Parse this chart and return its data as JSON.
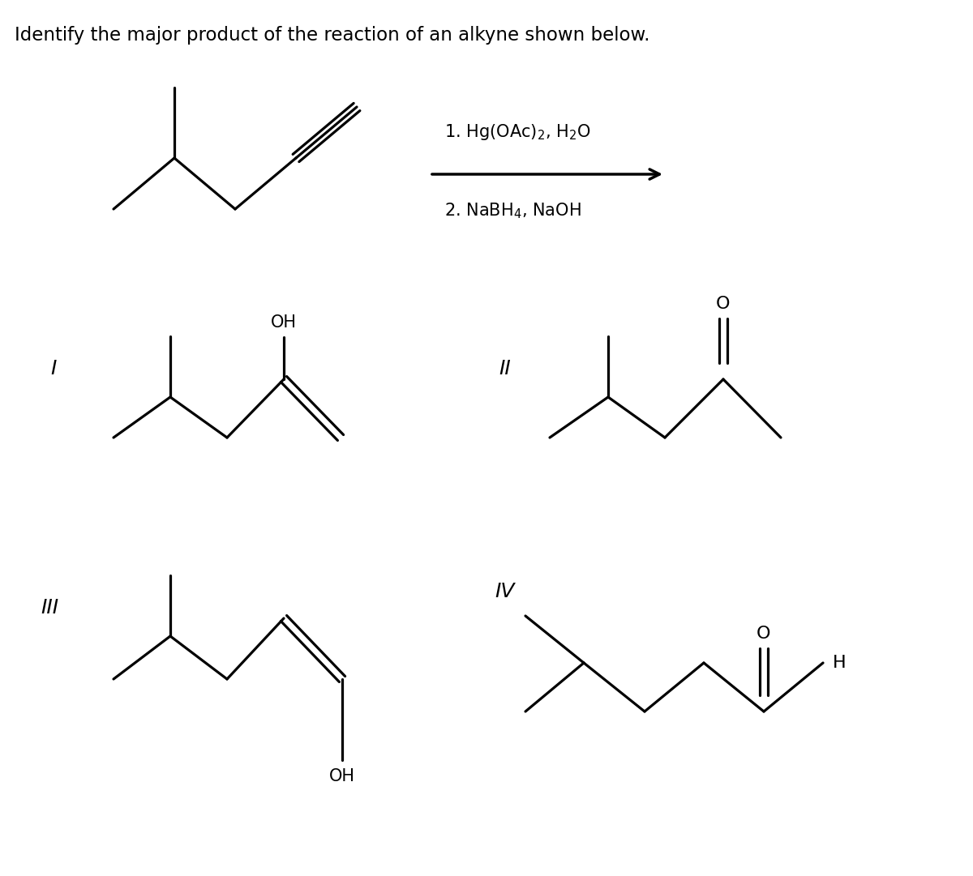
{
  "title": "Identify the major product of the reaction of an alkyne shown below.",
  "title_fontsize": 16.5,
  "bg_color": "#ffffff",
  "line_color": "#000000",
  "line_width": 2.3,
  "label_I": "I",
  "label_II": "II",
  "label_III": "III",
  "label_IV": "IV",
  "rn_fontsize": 18,
  "chem_fontsize": 15,
  "rxn_fontsize": 15
}
